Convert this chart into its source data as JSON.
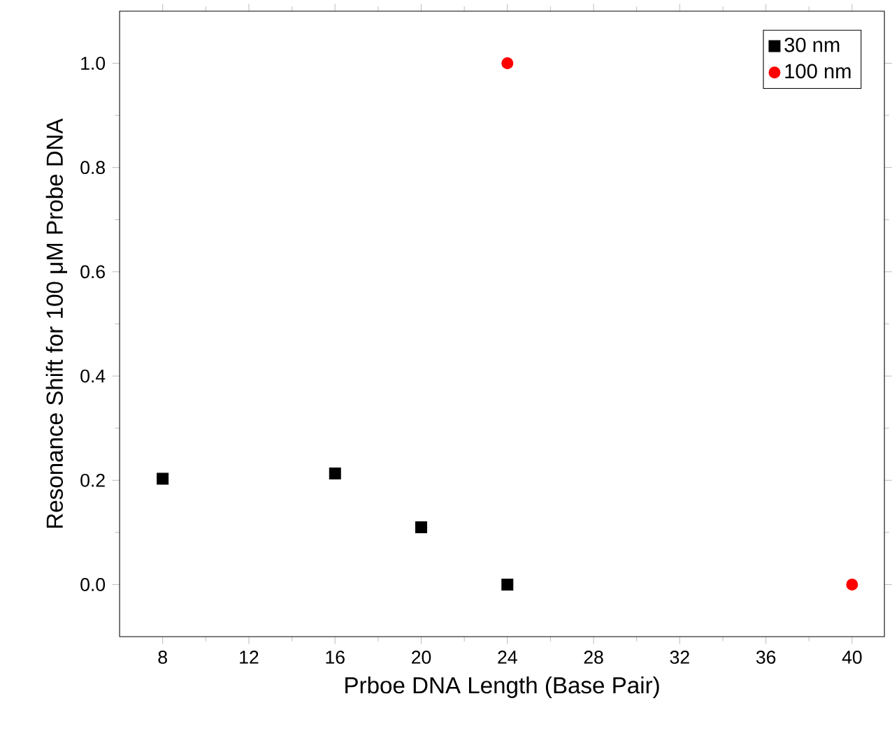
{
  "chart_data": {
    "type": "scatter",
    "xlabel": "Prboe DNA Length (Base Pair)",
    "ylabel": "Resonance Shift for 100 μM Probe DNA",
    "xlim": [
      6,
      41.5
    ],
    "ylim": [
      -0.1,
      1.1
    ],
    "xticks": [
      8,
      12,
      16,
      20,
      24,
      28,
      32,
      36,
      40
    ],
    "yticks": [
      {
        "value": 0,
        "label": "0.0"
      },
      {
        "value": 0.2,
        "label": "0.2"
      },
      {
        "value": 0.4,
        "label": "0.4"
      },
      {
        "value": 0.6,
        "label": "0.6"
      },
      {
        "value": 0.8,
        "label": "0.8"
      },
      {
        "value": 1,
        "label": "1.0"
      }
    ],
    "legend": "top right",
    "grid": false,
    "series": [
      {
        "name": "30 nm",
        "color": "#000000",
        "marker": "square",
        "x": [
          8,
          16,
          20,
          24
        ],
        "values": [
          0.203,
          0.213,
          0.11,
          0.0
        ]
      },
      {
        "name": "100 nm",
        "color": "#ff0000",
        "marker": "circle",
        "x": [
          24,
          40
        ],
        "values": [
          1.0,
          0.0
        ]
      }
    ]
  }
}
